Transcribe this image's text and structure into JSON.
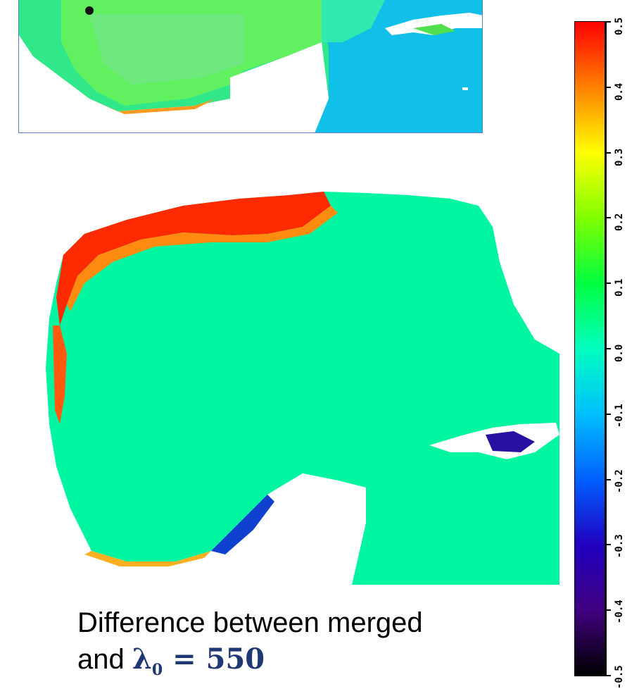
{
  "caption": {
    "line1": "Difference between merged",
    "line2_prefix": "and",
    "symbol": "λ",
    "subscript": "0",
    "equals": " = ",
    "value": "550"
  },
  "colorbar": {
    "ticks": [
      "0.5",
      "0.4",
      "0.3",
      "0.2",
      "0.1",
      "0.0",
      "-0.1",
      "-0.2",
      "-0.3",
      "-0.4",
      "-0.5"
    ],
    "colors": [
      "#ff0000",
      "#ff8000",
      "#ffff00",
      "#80ff00",
      "#00ff40",
      "#00ffc0",
      "#00c0ff",
      "#0060ff",
      "#2000c0",
      "#400080",
      "#000000"
    ]
  },
  "map": {
    "land_color": "#ffffff",
    "ocean_color": "#00f5a0",
    "coast_positive_color": "#ff3000",
    "coast_negative_color": "#1040d0"
  }
}
